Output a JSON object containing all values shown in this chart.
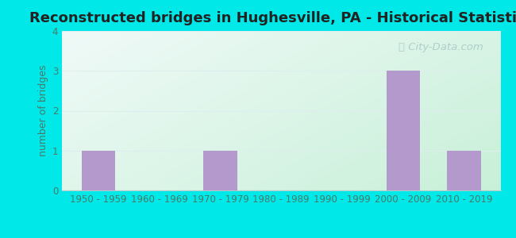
{
  "title": "Reconstructed bridges in Hughesville, PA - Historical Statistics",
  "categories": [
    "1950 - 1959",
    "1960 - 1969",
    "1970 - 1979",
    "1980 - 1989",
    "1990 - 1999",
    "2000 - 2009",
    "2010 - 2019"
  ],
  "values": [
    1,
    0,
    1,
    0,
    0,
    3,
    1
  ],
  "bar_color": "#b399cc",
  "ylabel": "number of bridges",
  "ylim": [
    0,
    4
  ],
  "yticks": [
    0,
    1,
    2,
    3,
    4
  ],
  "background_outer": "#00e8e8",
  "bg_top_right": "#f0faf8",
  "bg_bottom_left": "#c8f0d8",
  "title_color": "#222222",
  "axis_label_color": "#4a7a6a",
  "tick_label_color": "#4a7a6a",
  "title_fontsize": 13,
  "ylabel_fontsize": 9,
  "tick_fontsize": 8.5,
  "watermark_text": "City-Data.com",
  "watermark_color": "#a8c8c8",
  "grid_color": "#ddeeee",
  "spine_color": "#aacccc"
}
